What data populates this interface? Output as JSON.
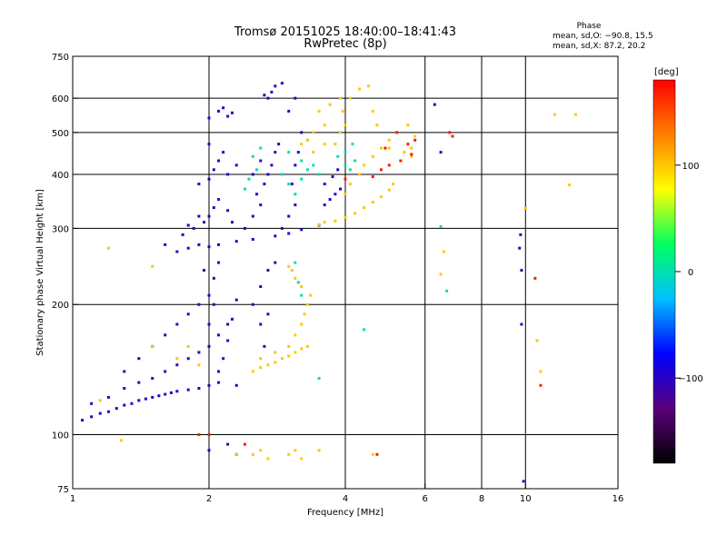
{
  "chart_data": {
    "type": "scatter",
    "title": "Tromsø 20151025 18:40:00–18:41:43",
    "subtitle": "RwPretec (8p)",
    "xlabel": "Frequency [MHz]",
    "ylabel": "Stationary phase Virtual Height [km]",
    "xscale": "log",
    "yscale": "log",
    "xlim": [
      1,
      16
    ],
    "ylim": [
      75,
      750
    ],
    "xticks": [
      1,
      2,
      4,
      6,
      8,
      10,
      16
    ],
    "xtick_labels": [
      "1",
      "2",
      "4",
      "6",
      "8",
      "10",
      "16"
    ],
    "xgrid": [
      2,
      4,
      6,
      8,
      10
    ],
    "yticks": [
      75,
      100,
      200,
      300,
      400,
      500,
      600,
      750
    ],
    "ytick_labels": [
      "75",
      "100",
      "200",
      "300",
      "400",
      "500",
      "600",
      "750"
    ],
    "ygrid": [
      100,
      200,
      300,
      400,
      500,
      600
    ],
    "grid": true,
    "info_block": {
      "title": "Phase",
      "line1": "mean, sd,O: −90.8, 15.5",
      "line2": "mean, sd,X: 87.2, 20.2"
    },
    "colorbar": {
      "label": "[deg]",
      "range": [
        -180,
        180
      ],
      "ticks": [
        100,
        0,
        -100
      ],
      "tick_labels": [
        "100",
        "0",
        "−100"
      ],
      "colors": [
        "#000000",
        "#5a007a",
        "#0000ff",
        "#00c0ff",
        "#00ff60",
        "#ffff00",
        "#ff8000",
        "#ff0000"
      ]
    },
    "series": [
      {
        "phase": -100,
        "points": [
          [
            1.05,
            108
          ],
          [
            1.1,
            110
          ],
          [
            1.15,
            112
          ],
          [
            1.2,
            113
          ],
          [
            1.25,
            115
          ],
          [
            1.3,
            117
          ],
          [
            1.35,
            118
          ],
          [
            1.4,
            120
          ],
          [
            1.45,
            121
          ],
          [
            1.5,
            122
          ],
          [
            1.55,
            123
          ],
          [
            1.6,
            124
          ],
          [
            1.65,
            125
          ],
          [
            1.7,
            126
          ],
          [
            1.8,
            127
          ],
          [
            1.9,
            128
          ],
          [
            2.0,
            130
          ],
          [
            2.1,
            132
          ],
          [
            1.1,
            118
          ],
          [
            1.2,
            122
          ],
          [
            1.3,
            128
          ],
          [
            1.4,
            132
          ],
          [
            1.5,
            135
          ],
          [
            1.6,
            140
          ],
          [
            1.7,
            145
          ],
          [
            1.8,
            150
          ],
          [
            1.9,
            155
          ],
          [
            2.0,
            160
          ],
          [
            2.1,
            170
          ],
          [
            2.2,
            180
          ],
          [
            1.3,
            140
          ],
          [
            1.4,
            150
          ],
          [
            1.5,
            160
          ],
          [
            1.6,
            170
          ],
          [
            1.7,
            180
          ],
          [
            1.8,
            190
          ],
          [
            1.9,
            200
          ],
          [
            2.0,
            210
          ],
          [
            2.05,
            230
          ],
          [
            2.1,
            250
          ],
          [
            1.95,
            240
          ],
          [
            2.0,
            180
          ],
          [
            2.05,
            200
          ],
          [
            2.1,
            140
          ],
          [
            2.15,
            150
          ],
          [
            2.2,
            165
          ],
          [
            2.25,
            185
          ],
          [
            2.3,
            205
          ],
          [
            2.3,
            130
          ],
          [
            1.6,
            275
          ],
          [
            1.7,
            265
          ],
          [
            1.8,
            270
          ],
          [
            1.9,
            275
          ],
          [
            2.0,
            272
          ],
          [
            2.1,
            275
          ],
          [
            2.3,
            280
          ],
          [
            2.5,
            283
          ],
          [
            2.8,
            288
          ],
          [
            3.0,
            292
          ],
          [
            3.2,
            298
          ],
          [
            3.5,
            305
          ],
          [
            1.75,
            290
          ],
          [
            1.85,
            300
          ],
          [
            1.95,
            310
          ],
          [
            2.0,
            320
          ],
          [
            2.05,
            335
          ],
          [
            2.1,
            350
          ],
          [
            2.2,
            330
          ],
          [
            2.25,
            310
          ],
          [
            1.9,
            320
          ],
          [
            1.8,
            305
          ],
          [
            1.9,
            380
          ],
          [
            2.0,
            390
          ],
          [
            2.05,
            410
          ],
          [
            2.1,
            430
          ],
          [
            2.15,
            450
          ],
          [
            2.2,
            400
          ],
          [
            2.3,
            420
          ],
          [
            2.0,
            470
          ],
          [
            2.0,
            540
          ],
          [
            2.1,
            560
          ],
          [
            2.15,
            570
          ],
          [
            2.2,
            545
          ],
          [
            2.25,
            555
          ],
          [
            2.4,
            300
          ],
          [
            2.5,
            320
          ],
          [
            2.6,
            340
          ],
          [
            2.55,
            360
          ],
          [
            2.65,
            380
          ],
          [
            2.7,
            400
          ],
          [
            2.75,
            420
          ],
          [
            2.8,
            450
          ],
          [
            2.85,
            470
          ],
          [
            2.6,
            430
          ],
          [
            2.5,
            400
          ],
          [
            2.7,
            600
          ],
          [
            2.75,
            620
          ],
          [
            2.8,
            640
          ],
          [
            2.9,
            650
          ],
          [
            2.65,
            610
          ],
          [
            2.9,
            300
          ],
          [
            3.0,
            320
          ],
          [
            3.1,
            340
          ],
          [
            3.05,
            380
          ],
          [
            3.1,
            420
          ],
          [
            3.15,
            450
          ],
          [
            3.2,
            500
          ],
          [
            3.0,
            560
          ],
          [
            3.1,
            600
          ],
          [
            3.6,
            340
          ],
          [
            3.7,
            350
          ],
          [
            3.8,
            360
          ],
          [
            3.9,
            370
          ],
          [
            3.6,
            380
          ],
          [
            3.75,
            395
          ],
          [
            3.85,
            410
          ],
          [
            2.5,
            200
          ],
          [
            2.6,
            220
          ],
          [
            2.7,
            240
          ],
          [
            2.8,
            250
          ],
          [
            2.6,
            180
          ],
          [
            2.65,
            160
          ],
          [
            2.7,
            190
          ],
          [
            2.2,
            95
          ],
          [
            2.3,
            90
          ],
          [
            2.0,
            92
          ],
          [
            9.7,
            270
          ],
          [
            9.75,
            290
          ],
          [
            9.8,
            240
          ],
          [
            9.8,
            180
          ],
          [
            9.9,
            78
          ],
          [
            6.3,
            580
          ],
          [
            6.5,
            450
          ]
        ]
      },
      {
        "phase": 0,
        "points": [
          [
            2.9,
            400
          ],
          [
            3.0,
            380
          ],
          [
            3.1,
            360
          ],
          [
            3.2,
            390
          ],
          [
            3.3,
            410
          ],
          [
            3.4,
            420
          ],
          [
            3.5,
            400
          ],
          [
            3.2,
            430
          ],
          [
            3.1,
            250
          ],
          [
            3.15,
            225
          ],
          [
            3.2,
            210
          ],
          [
            2.4,
            370
          ],
          [
            2.45,
            390
          ],
          [
            2.55,
            410
          ],
          [
            2.5,
            440
          ],
          [
            2.6,
            460
          ],
          [
            3.0,
            450
          ],
          [
            3.3,
            480
          ],
          [
            4.0,
            420
          ],
          [
            4.1,
            410
          ],
          [
            4.2,
            430
          ],
          [
            4.0,
            450
          ],
          [
            4.15,
            470
          ],
          [
            3.85,
            440
          ],
          [
            6.5,
            303
          ],
          [
            6.7,
            215
          ],
          [
            3.5,
            135
          ],
          [
            4.4,
            175
          ]
        ]
      },
      {
        "phase": 100,
        "points": [
          [
            2.5,
            140
          ],
          [
            2.6,
            143
          ],
          [
            2.7,
            145
          ],
          [
            2.8,
            147
          ],
          [
            2.9,
            150
          ],
          [
            3.0,
            152
          ],
          [
            3.1,
            155
          ],
          [
            3.2,
            158
          ],
          [
            3.3,
            160
          ],
          [
            2.6,
            150
          ],
          [
            2.8,
            155
          ],
          [
            3.0,
            160
          ],
          [
            3.1,
            170
          ],
          [
            3.2,
            180
          ],
          [
            3.25,
            190
          ],
          [
            3.3,
            200
          ],
          [
            3.35,
            210
          ],
          [
            3.2,
            220
          ],
          [
            3.1,
            230
          ],
          [
            3.0,
            245
          ],
          [
            3.05,
            240
          ],
          [
            2.5,
            90
          ],
          [
            2.6,
            92
          ],
          [
            2.7,
            88
          ],
          [
            3.0,
            90
          ],
          [
            3.1,
            92
          ],
          [
            3.2,
            88
          ],
          [
            3.5,
            92
          ],
          [
            2.3,
            90
          ],
          [
            3.5,
            306
          ],
          [
            3.6,
            310
          ],
          [
            3.8,
            312
          ],
          [
            4.0,
            318
          ],
          [
            4.2,
            325
          ],
          [
            4.4,
            335
          ],
          [
            4.6,
            345
          ],
          [
            4.8,
            355
          ],
          [
            5.0,
            368
          ],
          [
            5.1,
            380
          ],
          [
            4.0,
            360
          ],
          [
            4.1,
            380
          ],
          [
            4.3,
            400
          ],
          [
            4.4,
            420
          ],
          [
            4.6,
            440
          ],
          [
            4.8,
            460
          ],
          [
            5.0,
            480
          ],
          [
            5.2,
            500
          ],
          [
            5.5,
            520
          ],
          [
            5.7,
            490
          ],
          [
            5.6,
            460
          ],
          [
            5.4,
            450
          ],
          [
            3.8,
            470
          ],
          [
            3.9,
            500
          ],
          [
            4.0,
            520
          ],
          [
            3.95,
            560
          ],
          [
            4.1,
            600
          ],
          [
            4.3,
            630
          ],
          [
            4.5,
            640
          ],
          [
            4.6,
            560
          ],
          [
            4.7,
            520
          ],
          [
            5.0,
            460
          ],
          [
            5.3,
            430
          ],
          [
            5.6,
            440
          ],
          [
            3.4,
            500
          ],
          [
            3.6,
            520
          ],
          [
            3.5,
            560
          ],
          [
            3.7,
            580
          ],
          [
            3.9,
            600
          ],
          [
            3.6,
            470
          ],
          [
            3.4,
            450
          ],
          [
            3.3,
            480
          ],
          [
            3.2,
            470
          ],
          [
            1.2,
            270
          ],
          [
            1.15,
            120
          ],
          [
            1.28,
            97
          ],
          [
            1.5,
            245
          ],
          [
            1.5,
            160
          ],
          [
            1.7,
            150
          ],
          [
            1.8,
            160
          ],
          [
            1.9,
            145
          ],
          [
            6.6,
            265
          ],
          [
            6.5,
            235
          ],
          [
            4.6,
            90
          ],
          [
            10.0,
            334
          ],
          [
            10.6,
            165
          ],
          [
            11.6,
            550
          ],
          [
            12.5,
            378
          ],
          [
            12.9,
            550
          ],
          [
            10.8,
            140
          ]
        ]
      },
      {
        "phase": 170,
        "points": [
          [
            4.6,
            395
          ],
          [
            4.8,
            410
          ],
          [
            5.0,
            420
          ],
          [
            5.3,
            430
          ],
          [
            5.6,
            445
          ],
          [
            4.9,
            460
          ],
          [
            5.2,
            500
          ],
          [
            5.5,
            470
          ],
          [
            5.7,
            480
          ],
          [
            6.8,
            500
          ],
          [
            6.9,
            490
          ],
          [
            10.5,
            230
          ],
          [
            10.8,
            130
          ],
          [
            4.0,
            390
          ],
          [
            2.0,
            100
          ],
          [
            2.4,
            95
          ],
          [
            1.9,
            100
          ],
          [
            4.7,
            90
          ]
        ]
      }
    ]
  }
}
